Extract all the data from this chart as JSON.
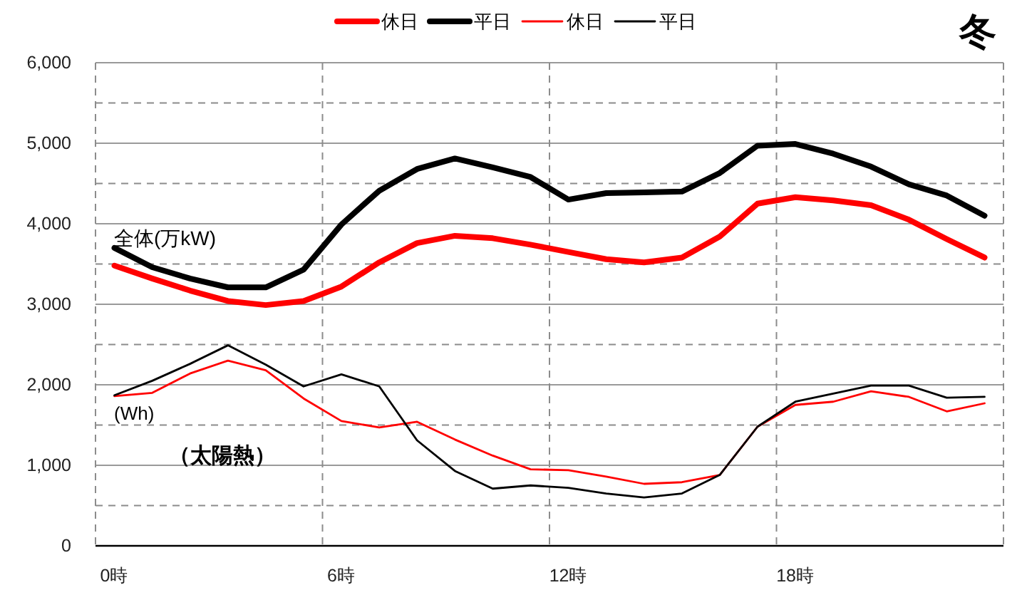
{
  "chart_data": {
    "type": "line",
    "title": "冬",
    "categories": [
      "0時",
      null,
      null,
      null,
      null,
      null,
      "6時",
      null,
      null,
      null,
      null,
      null,
      "12時",
      null,
      null,
      null,
      null,
      null,
      "18時",
      null,
      null,
      null,
      null,
      null
    ],
    "series": [
      {
        "name": "休日",
        "color": "#ff0000",
        "values": [
          3480,
          3320,
          3170,
          3040,
          2990,
          3040,
          3220,
          3520,
          3760,
          3850,
          3820,
          3740,
          3650,
          3560,
          3520,
          3580,
          3840,
          4250,
          4330,
          4290,
          4230,
          4050,
          3810,
          3580
        ]
      },
      {
        "name": "平日",
        "color": "#000000",
        "values": [
          3700,
          3460,
          3320,
          3210,
          3210,
          3430,
          3990,
          4410,
          4680,
          4810,
          4700,
          4580,
          4300,
          4380,
          4390,
          4400,
          4630,
          4970,
          4990,
          4870,
          4710,
          4490,
          4350,
          4100
        ]
      },
      {
        "name": "休日",
        "color": "#ff0000",
        "values": [
          1860,
          1900,
          2140,
          2300,
          2180,
          1830,
          1550,
          1470,
          1540,
          1320,
          1120,
          950,
          940,
          860,
          770,
          790,
          880,
          1480,
          1750,
          1790,
          1920,
          1850,
          1670,
          1770
        ]
      },
      {
        "name": "平日",
        "color": "#000000",
        "values": [
          1870,
          2050,
          2260,
          2490,
          2250,
          1980,
          2130,
          1980,
          1310,
          930,
          710,
          750,
          720,
          650,
          600,
          650,
          880,
          1480,
          1790,
          1890,
          1990,
          1990,
          1840,
          1850
        ]
      }
    ],
    "ylim": [
      0,
      6000
    ],
    "yticks": [
      0,
      {
        "value": 500,
        "label": null
      },
      {
        "value": 1000,
        "label": "1,000"
      },
      {
        "value": 1500,
        "label": null
      },
      {
        "value": 2000,
        "label": "2,000"
      },
      {
        "value": 2500,
        "label": null
      },
      {
        "value": 3000,
        "label": "3,000"
      },
      {
        "value": 3500,
        "label": null
      },
      {
        "value": 4000,
        "label": "4,000"
      },
      {
        "value": 4500,
        "label": null
      },
      {
        "value": 5000,
        "label": "5,000"
      },
      {
        "value": 5500,
        "label": null
      },
      {
        "value": 6000,
        "label": "6,000"
      }
    ],
    "grid": true,
    "legend": "top",
    "line_style": "solid",
    "annotations": [
      "全体(万kW)",
      "(Wh)",
      "（太陽熱）"
    ]
  }
}
